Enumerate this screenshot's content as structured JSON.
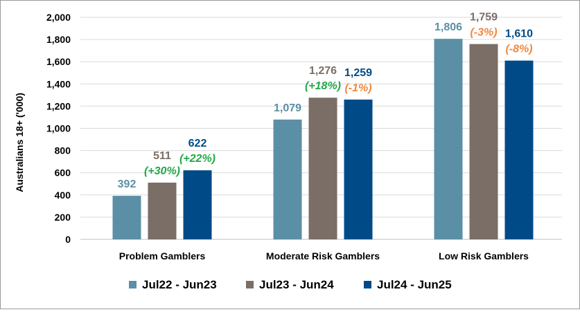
{
  "chart_data": {
    "type": "bar",
    "title": "",
    "xlabel": "",
    "ylabel": "Australians 18+ ('000)",
    "ylim": [
      0,
      2000
    ],
    "yticks": [
      0,
      200,
      400,
      600,
      800,
      1000,
      1200,
      1400,
      1600,
      1800,
      2000
    ],
    "ytick_labels": [
      "0",
      "200",
      "400",
      "600",
      "800",
      "1,000",
      "1,200",
      "1,400",
      "1,600",
      "1,800",
      "2,000"
    ],
    "grid": true,
    "legend_position": "bottom",
    "categories": [
      "Problem Gamblers",
      "Moderate Risk Gamblers",
      "Low Risk Gamblers"
    ],
    "series": [
      {
        "name": "Jul22 - Jun23",
        "color": "#5b8fa5",
        "values": [
          392,
          1079,
          1806
        ],
        "value_labels": [
          "392",
          "1,079",
          "1,806"
        ],
        "change_labels": [
          "",
          "",
          ""
        ]
      },
      {
        "name": "Jul23 - Jun24",
        "color": "#7a6e66",
        "values": [
          511,
          1276,
          1759
        ],
        "value_labels": [
          "511",
          "1,276",
          "1,759"
        ],
        "change_labels": [
          "(+30%)",
          "(+18%)",
          "(-3%)"
        ]
      },
      {
        "name": "Jul24 - Jun25",
        "color": "#004b87",
        "values": [
          622,
          1259,
          1610
        ],
        "value_labels": [
          "622",
          "1,259",
          "1,610"
        ],
        "change_labels": [
          "(+22%)",
          "(-1%)",
          "(-8%)"
        ]
      }
    ],
    "change_colors": {
      "positive": "#22a84a",
      "negative": "#f0883e"
    },
    "value_label_colors": [
      "#5b8fa5",
      "#7a6e66",
      "#004b87"
    ]
  }
}
